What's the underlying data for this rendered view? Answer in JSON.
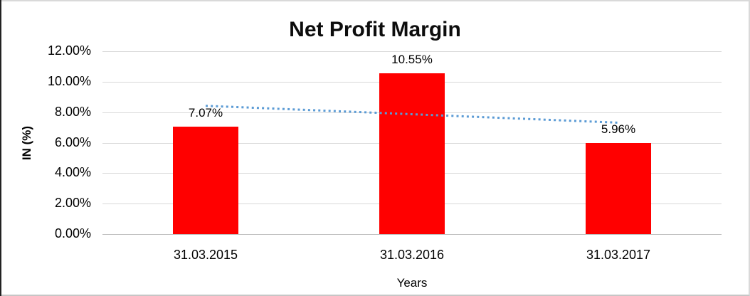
{
  "chart_data": {
    "type": "bar",
    "title": "Net Profit Margin",
    "xlabel": "Years",
    "ylabel": "IN (%)",
    "categories": [
      "31.03.2015",
      "31.03.2016",
      "31.03.2017"
    ],
    "values": [
      7.07,
      10.55,
      5.96
    ],
    "data_labels": [
      "7.07%",
      "10.55%",
      "5.96%"
    ],
    "yticks": [
      "12.00%",
      "10.00%",
      "8.00%",
      "6.00%",
      "4.00%",
      "2.00%",
      "0.00%"
    ],
    "ylim": [
      0,
      12
    ],
    "grid": true,
    "legend": "none",
    "bar_color": "#FF0000",
    "trendline": {
      "type": "linear",
      "style": "dotted",
      "color": "#5B9BD5",
      "start_value": 8.42,
      "end_value": 7.31
    },
    "colors": {
      "gridline": "#D9D9D9",
      "axis_text": "#000000",
      "title_text": "#0D0D0D",
      "frame_border": "#D9D9D9"
    }
  }
}
